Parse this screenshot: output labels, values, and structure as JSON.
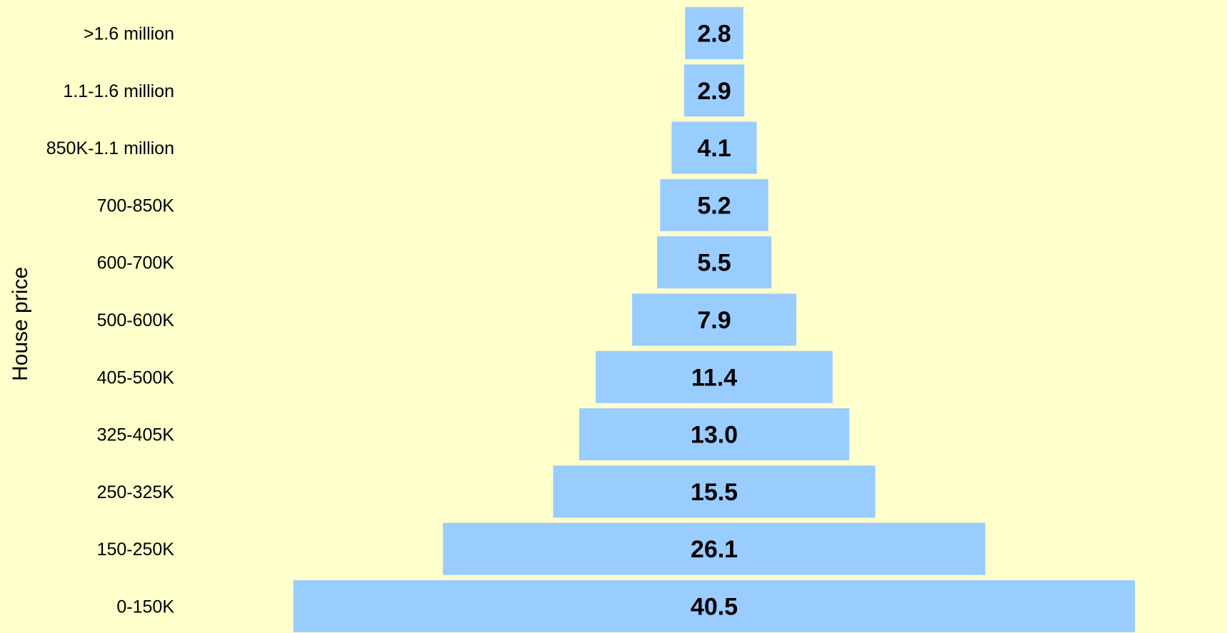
{
  "chart_data": {
    "type": "bar",
    "orientation": "horizontal-centered",
    "title": "",
    "ylabel": "House price",
    "xlabel": "",
    "categories": [
      ">1.6 million",
      "1.1-1.6 million",
      "850K-1.1 million",
      "700-850K",
      "600-700K",
      "500-600K",
      "405-500K",
      "325-405K",
      "250-325K",
      "150-250K",
      "0-150K"
    ],
    "values": [
      2.8,
      2.9,
      4.1,
      5.2,
      5.5,
      7.9,
      11.4,
      13.0,
      15.5,
      26.1,
      40.5
    ],
    "value_labels": [
      "2.8",
      "2.9",
      "4.1",
      "5.2",
      "5.5",
      "7.9",
      "11.4",
      "13.0",
      "15.5",
      "26.1",
      "40.5"
    ],
    "grid": false,
    "legend": "none"
  },
  "colors": {
    "background": "#FFFFCC",
    "bar": "#99CCFF",
    "text": "#000000"
  }
}
